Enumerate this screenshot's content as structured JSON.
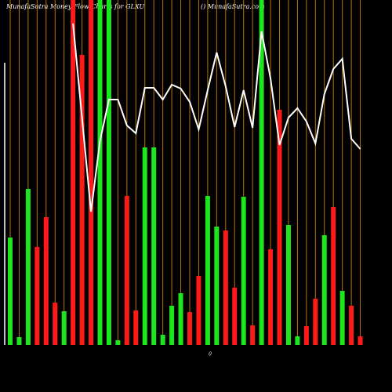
{
  "chart_data": {
    "type": "bar",
    "title": "MunafaSutra  Money Flow  Charts for GLXU",
    "subtitle": "() MunafaSutra.com",
    "axis_label": "0",
    "categories": [
      null,
      null,
      null,
      null,
      null,
      null,
      null,
      null,
      null,
      null,
      null,
      null,
      null,
      null,
      null,
      null,
      null,
      null,
      null,
      null,
      null,
      null,
      null,
      null,
      null,
      null,
      null,
      null,
      null,
      null,
      null,
      null,
      null,
      null,
      null,
      null,
      null,
      null,
      null,
      null
    ],
    "colors": [
      "#1ee61e",
      "#1ee61e",
      "#1ee61e",
      "#ff1a1a",
      "#ff1a1a",
      "#ff1a1a",
      "#1ee61e",
      "#ff1a1a",
      "#ff1a1a",
      "#ff1a1a",
      "#1ee61e",
      "#1ee61e",
      "#1ee61e",
      "#ff1a1a",
      "#ff1a1a",
      "#1ee61e",
      "#1ee61e",
      "#1ee61e",
      "#1ee61e",
      "#1ee61e",
      "#ff1a1a",
      "#ff1a1a",
      "#1ee61e",
      "#1ee61e",
      "#ff1a1a",
      "#ff1a1a",
      "#1ee61e",
      "#ff1a1a",
      "#1ee61e",
      "#ff1a1a",
      "#ff1a1a",
      "#1ee61e",
      "#1ee61e",
      "#ff1a1a",
      "#ff1a1a",
      "#1ee61e",
      "#ff1a1a",
      "#1ee61e",
      "#ff1a1a",
      "#ff1a1a"
    ],
    "values": [
      137,
      10,
      199,
      125,
      163,
      54,
      43,
      440,
      370,
      440,
      440,
      440,
      6,
      190,
      44,
      252,
      252,
      13,
      50,
      66,
      42,
      88,
      190,
      151,
      146,
      73,
      189,
      25,
      440,
      122,
      300,
      153,
      11,
      24,
      59,
      140,
      176,
      69,
      50,
      11
    ],
    "line": {
      "color": "#ffffff",
      "values": [
        null,
        null,
        null,
        null,
        null,
        null,
        null,
        410,
        290,
        170,
        260,
        313,
        313,
        280,
        270,
        328,
        328,
        313,
        332,
        327,
        310,
        275,
        325,
        373,
        330,
        278,
        325,
        277,
        400,
        340,
        255,
        290,
        302,
        285,
        257,
        320,
        352,
        365,
        263,
        250
      ]
    },
    "ylim": [
      0,
      440
    ],
    "grid_color": "#b8730a"
  }
}
